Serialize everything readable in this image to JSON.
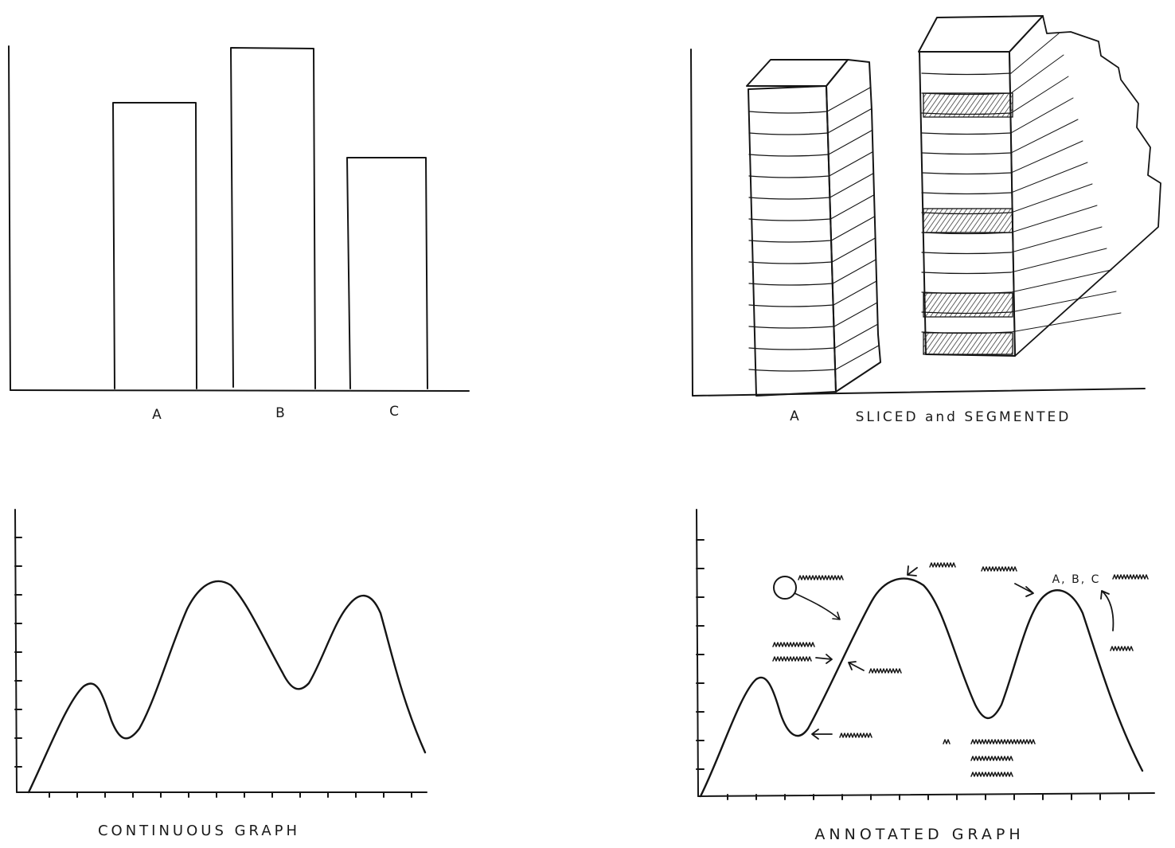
{
  "panels": [
    {
      "id": "bar",
      "categories": [
        "A",
        "B",
        "C"
      ]
    },
    {
      "id": "stacked",
      "caption_parts": [
        "A",
        "SLICED and SEGMENTED"
      ]
    },
    {
      "id": "continuous",
      "caption": "CONTINUOUS GRAPH"
    },
    {
      "id": "annotated",
      "caption": "ANNOTATED GRAPH",
      "annotation_label": "A, B, C"
    }
  ],
  "colors": {
    "ink": "#151515",
    "paper": "#ffffff",
    "hatch": "#3a3a3a"
  }
}
